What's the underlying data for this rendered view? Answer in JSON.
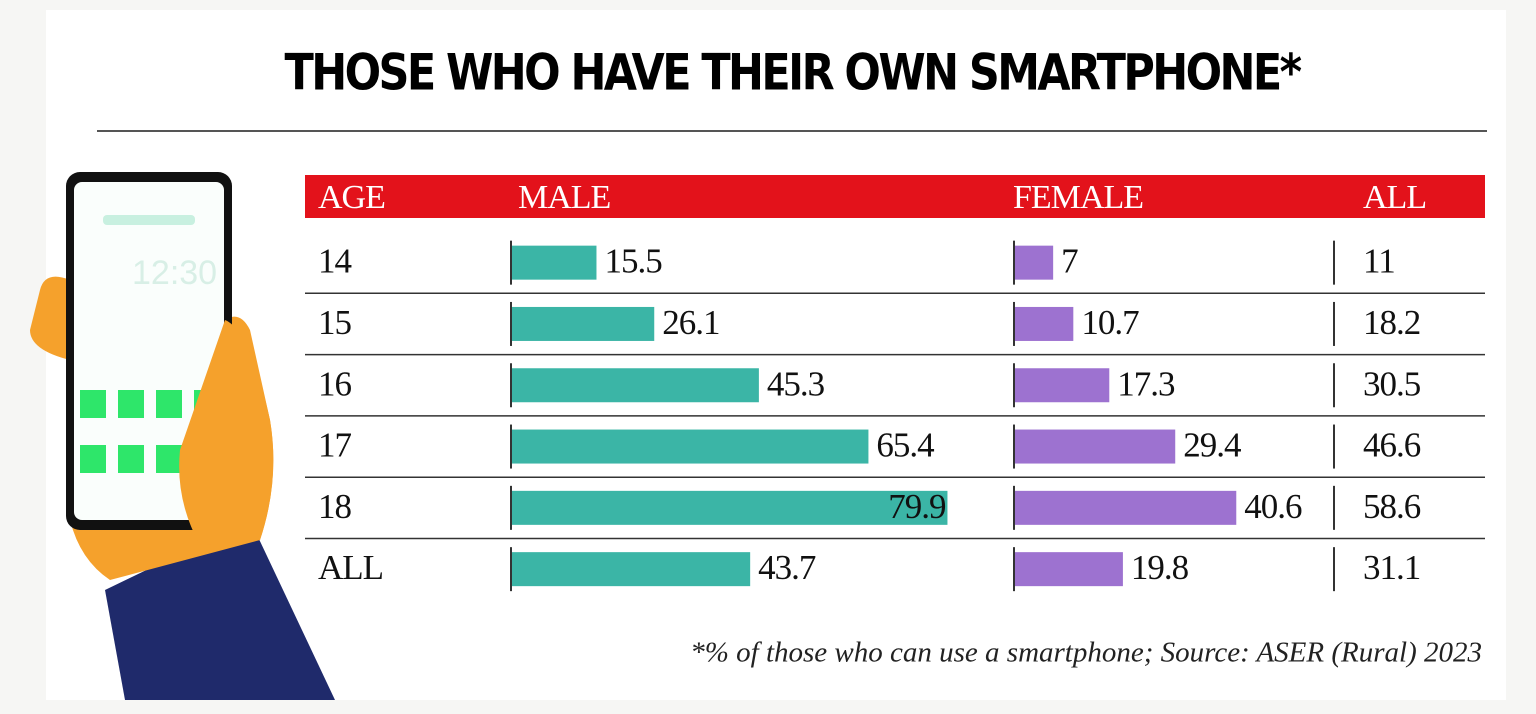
{
  "chart_data": {
    "type": "bar",
    "title": "THOSE WHO HAVE THEIR OWN SMARTPHONE*",
    "category_label": "AGE",
    "categories": [
      "14",
      "15",
      "16",
      "17",
      "18",
      "ALL"
    ],
    "series": [
      {
        "name": "MALE",
        "color": "#3bb5a6",
        "values": [
          15.5,
          26.1,
          45.3,
          65.4,
          79.9,
          43.7
        ]
      },
      {
        "name": "FEMALE",
        "color": "#9d72d0",
        "values": [
          7,
          10.7,
          17.3,
          29.4,
          40.6,
          19.8
        ]
      },
      {
        "name": "ALL",
        "values": [
          11,
          18.2,
          30.5,
          46.6,
          58.6,
          31.1
        ]
      }
    ],
    "header_color": "#e3121b",
    "footnote": "*% of those who can use a smartphone;   Source: ASER (Rural) 2023"
  },
  "illustration": {
    "phone_time": "12:30"
  }
}
